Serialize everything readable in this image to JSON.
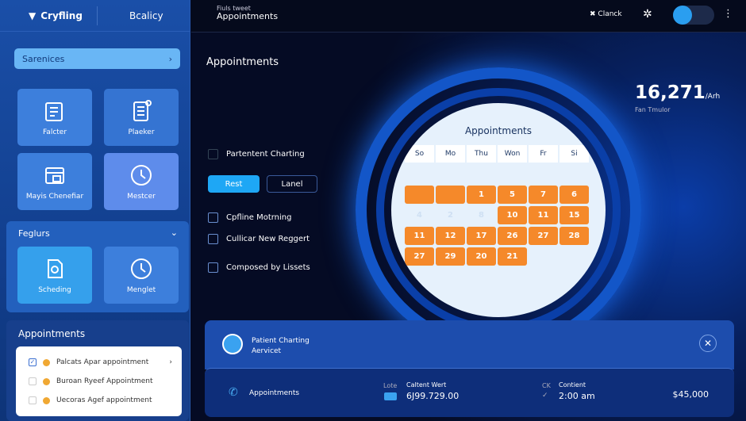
{
  "sidebar": {
    "brand": "Cryfling",
    "tab": "Bcalicy",
    "search": "Sarenices",
    "tiles": [
      "Falcter",
      "Plaeker",
      "Mayis Chenefiar",
      "Mestcer"
    ],
    "features": {
      "title": "Feglurs",
      "tiles": [
        "Scheding",
        "Menglet"
      ]
    },
    "appointments": {
      "title": "Appointments",
      "items": [
        {
          "label": "Palcats Apar appointment",
          "checked": true
        },
        {
          "label": "Buroan Ryeef Appointment",
          "checked": false
        },
        {
          "label": "Uecoras Agef appointment",
          "checked": false
        }
      ]
    }
  },
  "header": {
    "subtitle": "Fiuls tweet",
    "title": "Appointments",
    "check": "Clanck"
  },
  "main": {
    "title": "Appointments",
    "checkbox_top": "Partentent Charting",
    "btn_primary": "Rest",
    "btn_secondary": "Lanel",
    "options": [
      "Cpfline Motrning",
      "Cullicar New Reggert",
      "Composed by Lissets"
    ],
    "stat": {
      "value": "16,271",
      "unit": "/Arh",
      "label": "Fan Tmulor"
    }
  },
  "calendar": {
    "title": "Appointments",
    "days": [
      "So",
      "Mo",
      "Thu",
      "Won",
      "Fr",
      "Si"
    ],
    "rows": [
      [
        [
          "",
          0
        ],
        [
          "",
          0
        ],
        [
          "",
          0
        ],
        [
          "",
          0
        ],
        [
          "",
          0
        ],
        [
          "",
          0
        ]
      ],
      [
        [
          "",
          1
        ],
        [
          "",
          1
        ],
        [
          "1",
          1
        ],
        [
          "5",
          1
        ],
        [
          "7",
          1
        ],
        [
          "6",
          1
        ]
      ],
      [
        [
          "4",
          0
        ],
        [
          "2",
          0
        ],
        [
          "8",
          0
        ],
        [
          "10",
          1
        ],
        [
          "11",
          1
        ],
        [
          "15",
          1
        ]
      ],
      [
        [
          "11",
          1
        ],
        [
          "12",
          1
        ],
        [
          "17",
          1
        ],
        [
          "26",
          1
        ],
        [
          "27",
          1
        ],
        [
          "28",
          1
        ]
      ],
      [
        [
          "27",
          1
        ],
        [
          "29",
          1
        ],
        [
          "20",
          1
        ],
        [
          "21",
          1
        ],
        [
          "",
          0
        ],
        [
          "",
          0
        ]
      ]
    ]
  },
  "detail": {
    "name": "Patient Charting",
    "sub": "Aervicet",
    "row_label": "Appointments",
    "col1_label": "Lote",
    "col1_head": "Caltent Wert",
    "col1_value": "6J99.729.00",
    "col2_label": "CK",
    "col2_head": "Contient",
    "col2_value": "2:00 am",
    "amount": "$45,000"
  },
  "colors": {
    "accent": "#f5892a",
    "primary": "#1ea7f5"
  }
}
